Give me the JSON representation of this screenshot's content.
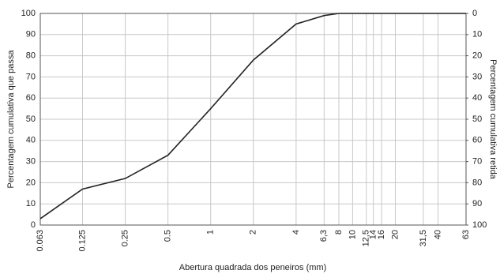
{
  "chart_data": {
    "type": "line",
    "x_label": "Abertura quadrada dos peneiros (mm)",
    "y_label": "Percentagem cumulativa que passa",
    "y2_label": "Percentagem cumulativa retida",
    "x_log": true,
    "grid": true,
    "xlim": [
      0.063,
      63
    ],
    "xticks": [
      0.063,
      0.125,
      0.25,
      0.5,
      1,
      2,
      4,
      {
        "value": 6.3,
        "label": "6,3"
      },
      8,
      10,
      {
        "value": 12.5,
        "label": "12,5"
      },
      14,
      16,
      20,
      {
        "value": 31.5,
        "label": "31,5"
      },
      40,
      63
    ],
    "ylim": [
      0,
      100
    ],
    "yticks": [
      0,
      10,
      20,
      30,
      40,
      50,
      60,
      70,
      80,
      90,
      100
    ],
    "y2lim": [
      100,
      0
    ],
    "y2ticks": [
      0,
      10,
      20,
      30,
      40,
      50,
      60,
      70,
      80,
      90,
      100
    ],
    "x": [
      0.063,
      0.125,
      0.25,
      0.5,
      1,
      2,
      4,
      6.3,
      8,
      63
    ],
    "series": [
      {
        "name": "Percentagem cumulativa que passa",
        "color": "#222222",
        "values": [
          3,
          17,
          22,
          33,
          55,
          78,
          95,
          99,
          100,
          100
        ]
      }
    ]
  }
}
